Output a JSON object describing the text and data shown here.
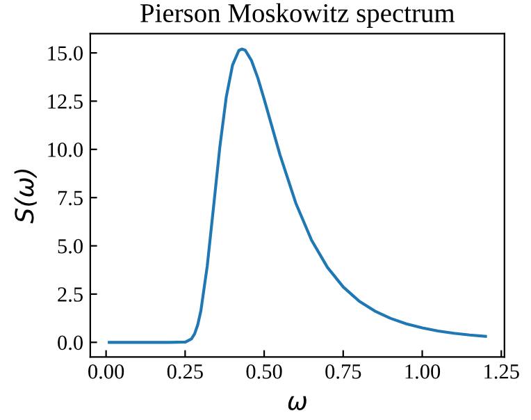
{
  "chart_data": {
    "type": "line",
    "title": "Pierson Moskowitz spectrum",
    "xlabel": "ω",
    "ylabel": "S(ω)",
    "x": [
      0.01,
      0.1,
      0.2,
      0.25,
      0.27,
      0.28,
      0.29,
      0.3,
      0.32,
      0.34,
      0.36,
      0.38,
      0.4,
      0.42,
      0.43,
      0.44,
      0.46,
      0.48,
      0.5,
      0.55,
      0.6,
      0.65,
      0.7,
      0.75,
      0.8,
      0.85,
      0.9,
      0.95,
      1.0,
      1.05,
      1.1,
      1.15,
      1.2
    ],
    "series": [
      {
        "color": "#1f77b4",
        "values": [
          0.0,
          0.0,
          0.0,
          0.01,
          0.18,
          0.44,
          0.91,
          1.65,
          3.96,
          7.03,
          10.15,
          12.7,
          14.37,
          15.13,
          15.2,
          15.14,
          14.6,
          13.7,
          12.6,
          9.72,
          7.22,
          5.29,
          3.89,
          2.87,
          2.14,
          1.62,
          1.24,
          0.96,
          0.75,
          0.59,
          0.47,
          0.38,
          0.31
        ]
      }
    ],
    "xlim": [
      -0.05,
      1.26
    ],
    "ylim": [
      -0.76,
      16.0
    ],
    "xticks": [
      {
        "value": 0,
        "label": "0.00"
      },
      {
        "value": 0.25,
        "label": "0.25"
      },
      {
        "value": 0.5,
        "label": "0.50"
      },
      {
        "value": 0.75,
        "label": "0.75"
      },
      {
        "value": 1.0,
        "label": "1.00"
      },
      {
        "value": 1.25,
        "label": "1.25"
      }
    ],
    "yticks": [
      {
        "value": 0,
        "label": "0.0"
      },
      {
        "value": 2.5,
        "label": "2.5"
      },
      {
        "value": 5,
        "label": "5.0"
      },
      {
        "value": 7.5,
        "label": "7.5"
      },
      {
        "value": 10,
        "label": "10.0"
      },
      {
        "value": 12.5,
        "label": "12.5"
      },
      {
        "value": 15,
        "label": "15.0"
      }
    ],
    "grid": false,
    "legend": false,
    "marker": "none",
    "line_style": "solid"
  }
}
